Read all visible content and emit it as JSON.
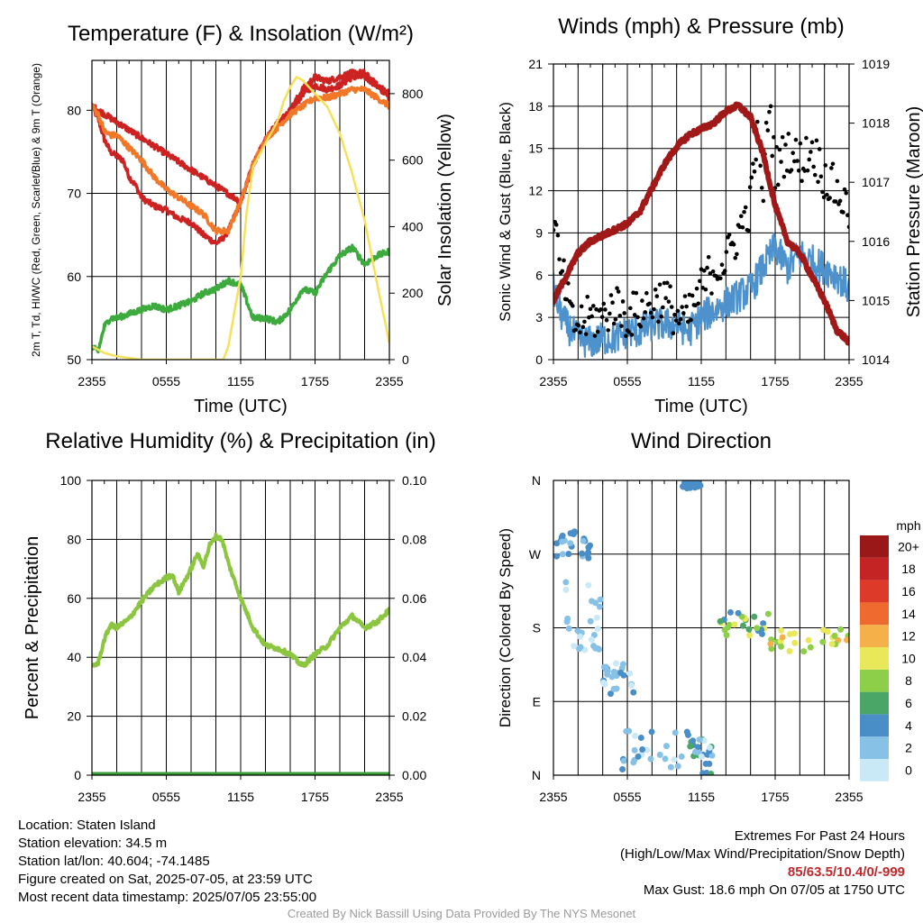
{
  "colors": {
    "red": "#cc2222",
    "orange": "#f07828",
    "green": "#3daa3d",
    "yellow": "#f7e05a",
    "blue": "#4d92cc",
    "black": "#000000",
    "maroon": "#a01818",
    "rh": "#8cc640",
    "precip": "#3a9e3a"
  },
  "chart_data": [
    {
      "id": "temperature",
      "type": "line",
      "title": "Temperature (F) & Insolation (W/m²)",
      "xlabel": "Time (UTC)",
      "ylabel": "2m T, Td, HI/WC (Red, Green, Scarlet/Blue) & 9m T (Orange)",
      "ylabel_right": "Solar Insolation (Yellow)",
      "x_ticks": [
        "2355",
        "0555",
        "1155",
        "1755",
        "2355"
      ],
      "x_range_hours": [
        0,
        24
      ],
      "ylim": [
        50,
        86
      ],
      "y_ticks": [
        50,
        60,
        70,
        80
      ],
      "ylim_right": [
        0,
        900
      ],
      "y_ticks_right": [
        0,
        200,
        400,
        600,
        800
      ],
      "series": [
        {
          "name": "2m T",
          "axis": "left",
          "color": "red",
          "x": [
            0,
            0.5,
            1,
            1.5,
            2,
            2.5,
            3,
            3.5,
            4,
            5,
            6,
            7,
            8,
            9,
            9.5,
            10,
            10.5,
            11,
            12,
            13,
            14,
            15,
            16,
            17,
            18,
            19,
            20,
            21,
            22,
            23,
            24
          ],
          "y": [
            80.5,
            79,
            76.5,
            75,
            74.5,
            74,
            72,
            71,
            69.5,
            68.5,
            68,
            67,
            66.5,
            65,
            64.5,
            64,
            64.5,
            65.5,
            69,
            73.5,
            76.5,
            78.5,
            79.5,
            82,
            83,
            82.5,
            83,
            84,
            84,
            83,
            82
          ]
        },
        {
          "name": "HI/WC",
          "axis": "left",
          "color": "red",
          "x": [
            0,
            12,
            13,
            14,
            15,
            16,
            17,
            18,
            19,
            20,
            21,
            22,
            23,
            24
          ],
          "y": [
            80.5,
            69,
            73.5,
            76.5,
            78.5,
            80,
            82.5,
            84,
            83.5,
            84,
            84.5,
            84.5,
            83,
            81.5
          ]
        },
        {
          "name": "9m T",
          "axis": "left",
          "color": "orange",
          "x": [
            0,
            0.5,
            1,
            1.5,
            2,
            3,
            4,
            5,
            6,
            7,
            8,
            9,
            10,
            11,
            12,
            13,
            14,
            15,
            16,
            17,
            18,
            19,
            20,
            21,
            22,
            23,
            24
          ],
          "y": [
            80.5,
            79.5,
            77.5,
            77,
            77,
            75.5,
            74,
            72,
            70.5,
            69.5,
            68.5,
            67.5,
            65.5,
            65.5,
            69,
            73.5,
            76.5,
            78,
            79.5,
            80.5,
            81.5,
            81.5,
            82,
            82.5,
            82.5,
            81.5,
            80.5
          ]
        },
        {
          "name": "2m Td",
          "axis": "left",
          "color": "green",
          "x": [
            0,
            0.5,
            1,
            1.5,
            2,
            3,
            4,
            5,
            6,
            7,
            8,
            9,
            10,
            11,
            12,
            13,
            14,
            15,
            16,
            17,
            18,
            19,
            20,
            21,
            22,
            23,
            24
          ],
          "y": [
            51.5,
            51,
            54,
            55,
            55,
            55.5,
            56,
            56.5,
            56,
            56.5,
            57,
            58,
            58.5,
            59.5,
            59,
            55,
            55,
            54.5,
            56,
            58.5,
            58,
            60.5,
            62.5,
            63.5,
            61.5,
            62.5,
            63
          ]
        },
        {
          "name": "Solar Insolation",
          "axis": "right",
          "color": "yellow",
          "x": [
            0,
            1,
            2,
            4,
            6,
            8,
            10,
            10.6,
            11,
            12,
            12.5,
            13,
            14,
            15,
            15.5,
            16,
            16.5,
            17,
            17.5,
            18,
            19,
            20,
            21,
            22,
            23,
            24
          ],
          "y": [
            40,
            20,
            10,
            0,
            0,
            0,
            0,
            0,
            40,
            250,
            450,
            580,
            650,
            720,
            780,
            820,
            850,
            840,
            820,
            800,
            760,
            680,
            560,
            420,
            230,
            50
          ]
        }
      ]
    },
    {
      "id": "winds",
      "type": "line",
      "title": "Winds (mph) & Pressure (mb)",
      "xlabel": "Time (UTC)",
      "ylabel": "Sonic Wind & Gust (Blue, Black)",
      "ylabel_right": "Station Pressure (Maroon)",
      "x_ticks": [
        "2355",
        "0555",
        "1155",
        "1755",
        "2355"
      ],
      "x_range_hours": [
        0,
        24
      ],
      "ylim": [
        0,
        21
      ],
      "y_ticks": [
        0,
        3,
        6,
        9,
        12,
        15,
        18,
        21
      ],
      "ylim_right": [
        1014,
        1019
      ],
      "y_ticks_right": [
        1014,
        1015,
        1016,
        1017,
        1018,
        1019
      ],
      "series": [
        {
          "name": "Sonic Wind",
          "axis": "left",
          "color": "blue",
          "x": [
            0,
            0.5,
            1,
            2,
            3,
            4,
            5,
            6,
            7,
            8,
            9,
            10,
            11,
            12,
            13,
            14,
            15,
            16,
            17,
            18,
            19,
            20,
            21,
            22,
            23,
            24
          ],
          "y": [
            5,
            3.5,
            2.5,
            1.5,
            1.2,
            1.5,
            1.5,
            2,
            2,
            2.5,
            2.5,
            2.5,
            2,
            3,
            3.5,
            4,
            4.5,
            5,
            6.5,
            8,
            6.5,
            7.5,
            7,
            6.5,
            6,
            5
          ]
        },
        {
          "name": "Gust",
          "axis": "left",
          "color": "black",
          "style": "dots",
          "x": [
            0,
            0.5,
            1,
            1.5,
            2,
            3,
            4,
            5,
            6,
            7,
            8,
            9,
            10,
            11,
            12,
            13,
            14,
            15,
            16,
            16.5,
            17,
            17.5,
            18,
            19,
            20,
            21,
            22,
            23,
            24
          ],
          "y": [
            10.5,
            6.5,
            5,
            2.5,
            2.5,
            3,
            3,
            4,
            3,
            3.5,
            4,
            4.5,
            3,
            3,
            5,
            6.5,
            7,
            9,
            11,
            16,
            11.5,
            18.6,
            13.5,
            15,
            14,
            15,
            13,
            12,
            10.5
          ]
        },
        {
          "name": "Station Pressure",
          "axis": "right",
          "color": "maroon",
          "x": [
            0,
            1,
            2,
            3,
            4,
            5,
            6,
            7,
            8,
            9,
            10,
            11,
            12,
            13,
            14,
            15,
            16,
            17,
            18,
            19,
            20,
            21,
            22,
            23,
            24
          ],
          "y": [
            1015,
            1015.4,
            1015.8,
            1016,
            1016.1,
            1016.2,
            1016.3,
            1016.5,
            1016.9,
            1017.3,
            1017.6,
            1017.8,
            1017.9,
            1018,
            1018.2,
            1018.3,
            1018.1,
            1017.5,
            1016.6,
            1016,
            1015.8,
            1015.4,
            1015,
            1014.5,
            1014.3
          ]
        }
      ]
    },
    {
      "id": "humidity",
      "type": "line",
      "title": "Relative Humidity (%) & Precipitation (in)",
      "xlabel": "",
      "ylabel": "Percent & Precipitation",
      "x_ticks": [
        "2355",
        "0555",
        "1155",
        "1755",
        "2355"
      ],
      "x_range_hours": [
        0,
        24
      ],
      "ylim": [
        0,
        100
      ],
      "y_ticks": [
        0,
        20,
        40,
        60,
        80,
        100
      ],
      "ylim_right": [
        0,
        0.1
      ],
      "y_ticks_right": [
        "0.00",
        "0.02",
        "0.04",
        "0.06",
        "0.08",
        "0.10"
      ],
      "series": [
        {
          "name": "Relative Humidity",
          "axis": "left",
          "color": "rh",
          "x": [
            0,
            0.5,
            1,
            1.5,
            2,
            3,
            4,
            5,
            6,
            6.5,
            7,
            8,
            8.5,
            9,
            9.5,
            10,
            10.5,
            11,
            12,
            13,
            14,
            15,
            16,
            17,
            18,
            19,
            20,
            21,
            22,
            23,
            24
          ],
          "y": [
            37,
            38,
            46,
            51,
            50,
            53,
            59,
            64,
            67,
            68,
            62,
            70,
            75,
            71,
            78,
            81,
            80,
            72,
            60,
            50,
            44,
            43,
            41,
            37,
            41,
            44,
            50,
            54,
            50,
            52,
            56
          ]
        },
        {
          "name": "Precipitation",
          "axis": "right",
          "color": "precip",
          "x": [
            0,
            24
          ],
          "y": [
            0,
            0
          ]
        }
      ]
    },
    {
      "id": "direction",
      "type": "scatter",
      "title": "Wind Direction",
      "xlabel": "",
      "ylabel": "Direction (Colored By Speed)",
      "x_ticks": [
        "2355",
        "0555",
        "1155",
        "1755",
        "2355"
      ],
      "x_range_hours": [
        0,
        24
      ],
      "y_ticks": [
        "N",
        "E",
        "S",
        "W",
        "N"
      ],
      "ylim_degrees": [
        0,
        360
      ],
      "colorbar_label": "mph",
      "colorbar_levels": [
        "0",
        "2",
        "4",
        "6",
        "8",
        "10",
        "12",
        "14",
        "16",
        "18",
        "20+"
      ],
      "colorbar_colors": [
        "#c9e9f7",
        "#88c1e6",
        "#4a8ec8",
        "#4aa667",
        "#8ecf4a",
        "#e8e85a",
        "#f5b04a",
        "#ee6a2e",
        "#dd3a2a",
        "#c42424",
        "#9a1818"
      ],
      "clusters": [
        {
          "x": [
            0,
            3
          ],
          "dir": [
            265,
            300
          ],
          "speed": [
            1,
            4
          ]
        },
        {
          "x": [
            1,
            4
          ],
          "dir": [
            150,
            240
          ],
          "speed": [
            0,
            2
          ]
        },
        {
          "x": [
            4,
            6.5
          ],
          "dir": [
            95,
            140
          ],
          "speed": [
            0,
            2.5
          ]
        },
        {
          "x": [
            5.5,
            11
          ],
          "dir": [
            5,
            55
          ],
          "speed": [
            0,
            3
          ]
        },
        {
          "x": [
            11,
            13
          ],
          "dir": [
            0,
            45
          ],
          "speed": [
            0,
            5
          ]
        },
        {
          "x": [
            10.5,
            12
          ],
          "dir": [
            350,
            360
          ],
          "speed": [
            2,
            4
          ]
        },
        {
          "x": [
            13.5,
            17.5
          ],
          "dir": [
            170,
            200
          ],
          "speed": [
            3,
            9
          ]
        },
        {
          "x": [
            17.5,
            24
          ],
          "dir": [
            150,
            180
          ],
          "speed": [
            6,
            11
          ]
        }
      ]
    }
  ],
  "info": {
    "location": "Location: Staten Island",
    "elevation": "Station elevation: 34.5 m",
    "latlon": "Station lat/lon: 40.604; -74.1485",
    "created": "Figure created on Sat, 2025-07-05, at 23:59 UTC",
    "recent": "Most recent data timestamp: 2025/07/05 23:55:00"
  },
  "extremes": {
    "title": "Extremes For Past 24 Hours",
    "subtitle": "(High/Low/Max Wind/Precipitation/Snow Depth)",
    "values": "85/63.5/10.4/0/-999",
    "gust": "Max Gust: 18.6 mph On 07/05 at 1750 UTC"
  },
  "credit": "Created By Nick Bassill Using Data Provided By The NYS Mesonet"
}
